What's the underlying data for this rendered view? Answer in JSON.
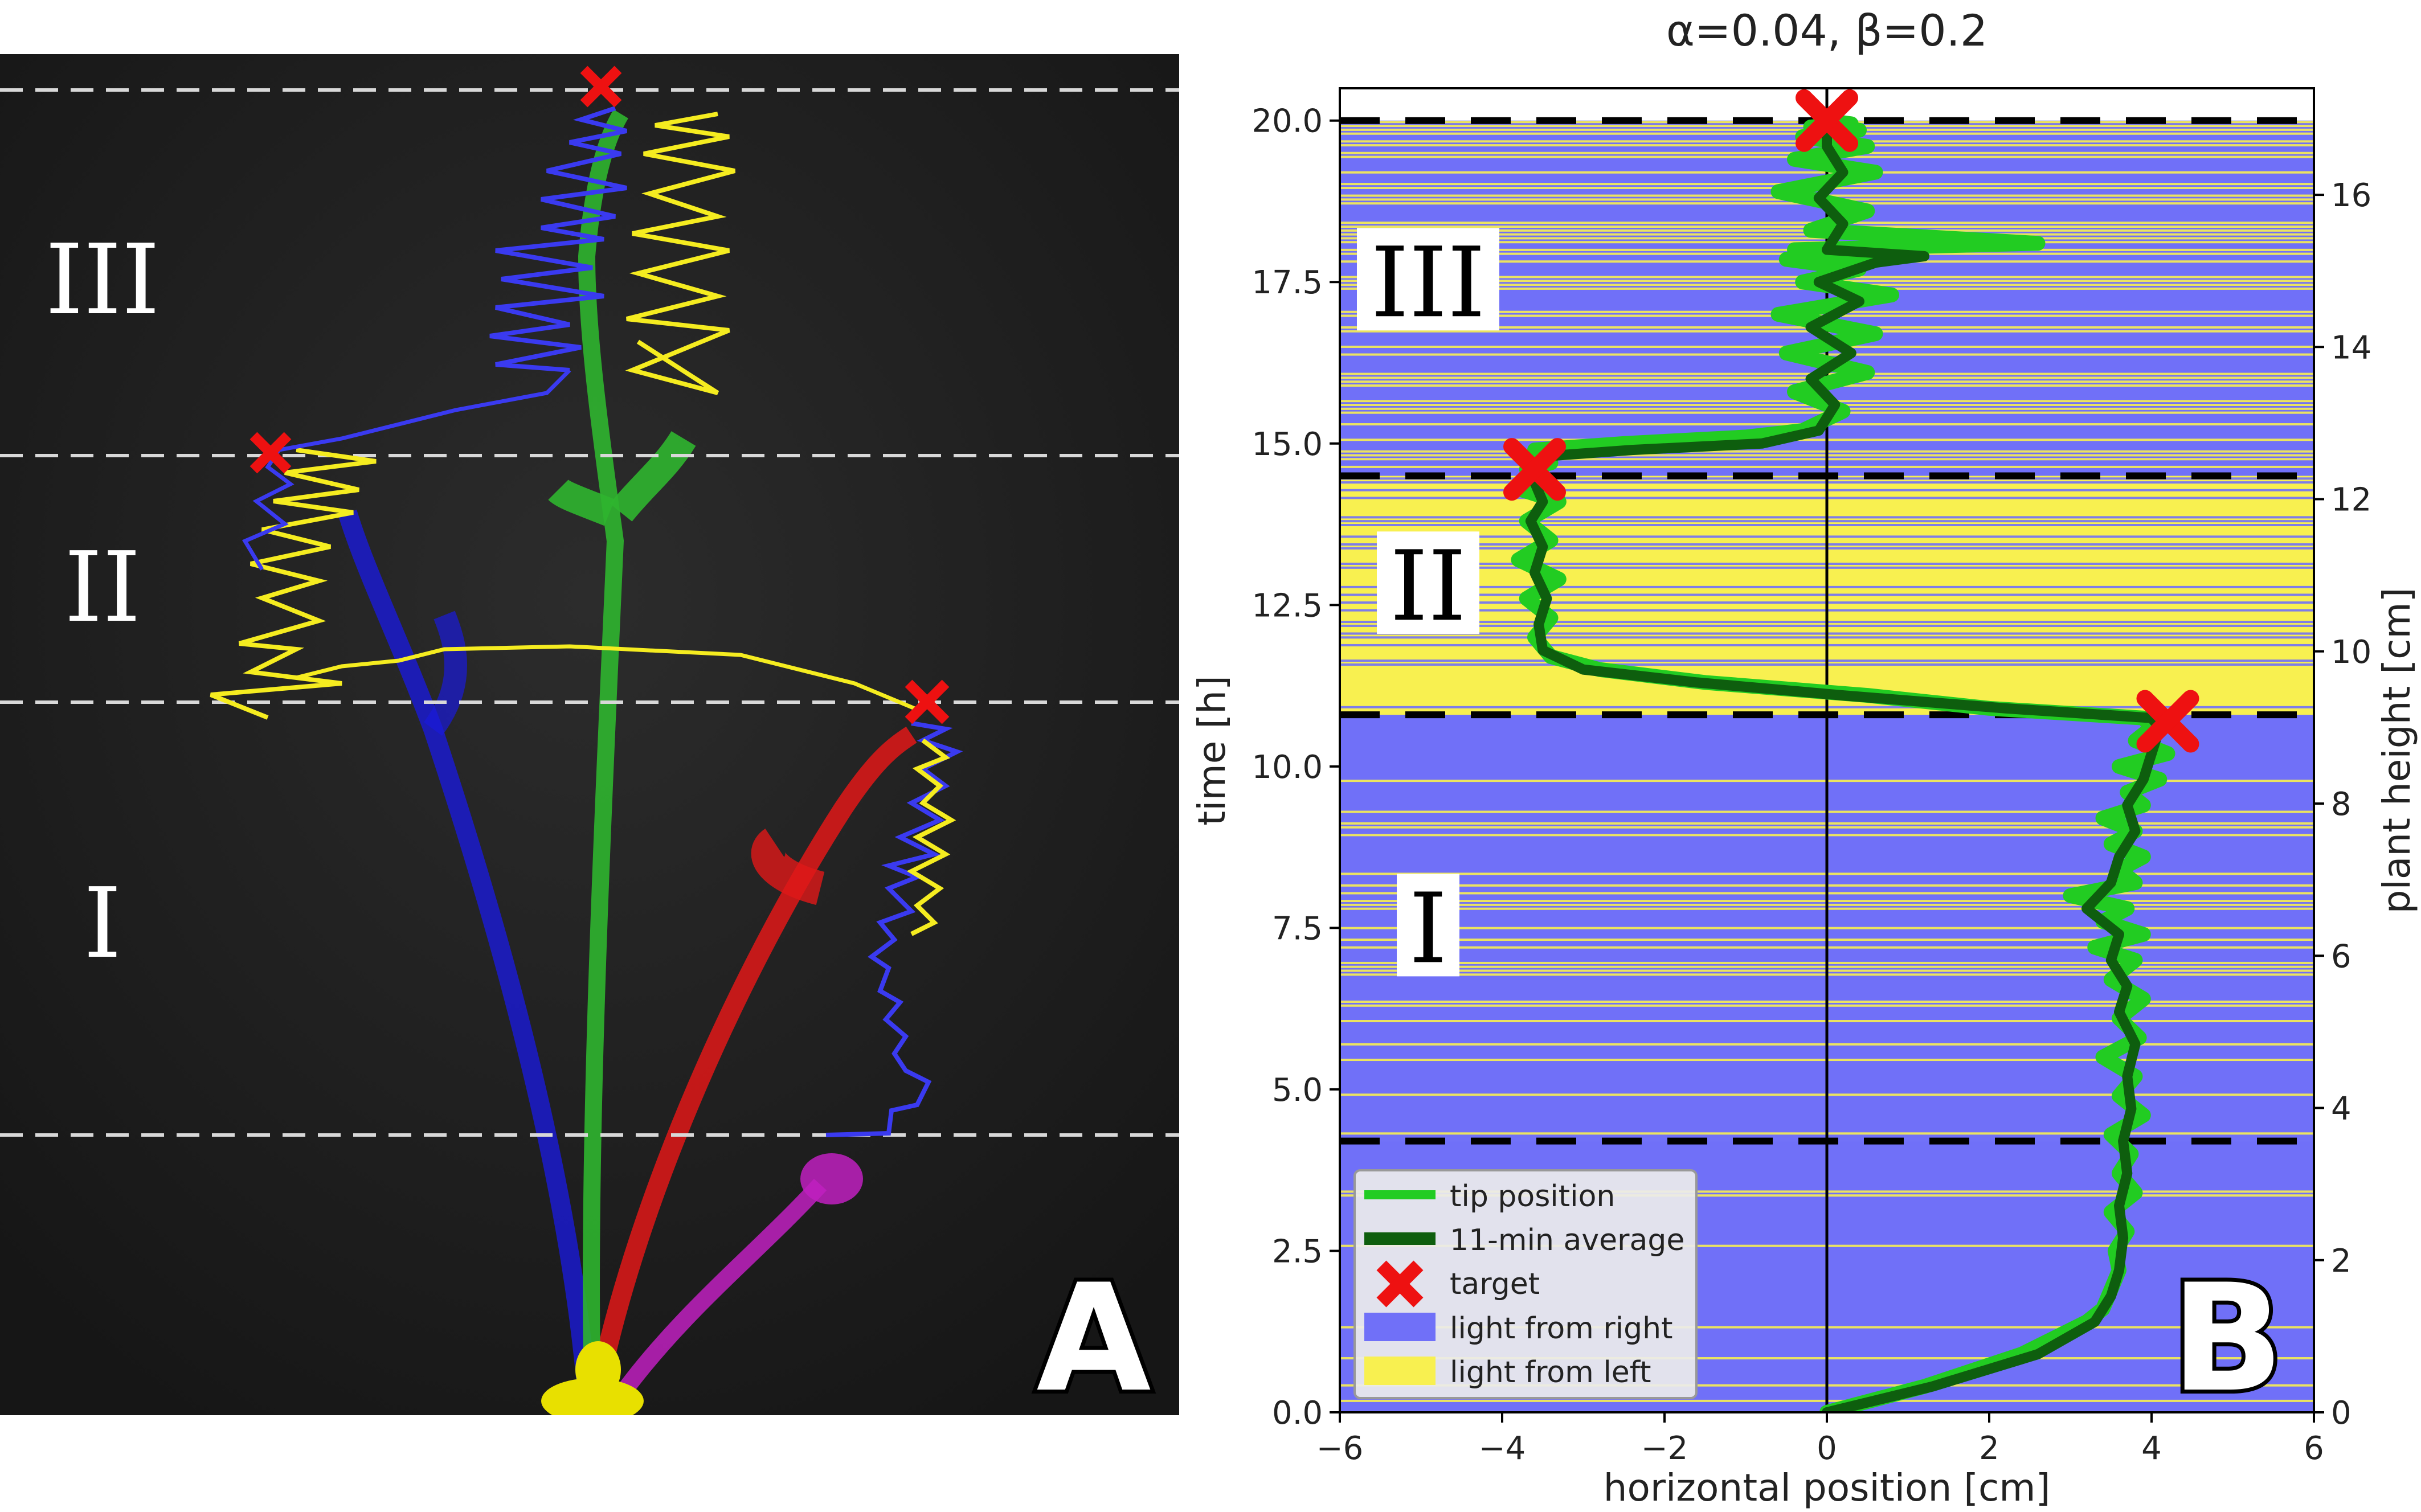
{
  "panels": {
    "a_letter": "A",
    "b_letter": "B"
  },
  "photo": {
    "region_labels": [
      "III",
      "II",
      "I"
    ],
    "trace_colors": {
      "blue": "#3a3af0",
      "yellow": "#f5ec20"
    },
    "plant_colors": {
      "green": "#2fb52f",
      "blue": "#1a1ad8",
      "red": "#e01818",
      "magenta": "#c020c0",
      "yellow": "#e8e000"
    },
    "target_color": "#ee1111",
    "background": "#202020"
  },
  "chart_data": {
    "type": "line",
    "title": "α=0.04, β=0.2",
    "xlabel": "horizontal position [cm]",
    "ylabel": "time [h]",
    "y2label": "plant height [cm]",
    "xlim": [
      -6,
      6
    ],
    "ylim": [
      0,
      20.5
    ],
    "y2lim": [
      0,
      17.4
    ],
    "xticks": [
      -6,
      -4,
      -2,
      0,
      2,
      4,
      6
    ],
    "xtick_labels": [
      "−6",
      "−4",
      "−2",
      "0",
      "2",
      "4",
      "6"
    ],
    "yticks": [
      0.0,
      2.5,
      5.0,
      7.5,
      10.0,
      12.5,
      15.0,
      17.5,
      20.0
    ],
    "ytick_labels": [
      "0.0",
      "2.5",
      "5.0",
      "7.5",
      "10.0",
      "12.5",
      "15.0",
      "17.5",
      "20.0"
    ],
    "y2ticks": [
      0,
      2,
      4,
      6,
      8,
      10,
      12,
      14,
      16
    ],
    "y2tick_labels": [
      "0",
      "2",
      "4",
      "6",
      "8",
      "10",
      "12",
      "14",
      "16"
    ],
    "phase_boundaries_h": [
      4.2,
      10.8,
      14.5,
      20.0
    ],
    "region_labels": [
      {
        "label": "III",
        "x": -6.0,
        "y": 17.5
      },
      {
        "label": "II",
        "x": -6.0,
        "y": 12.8
      },
      {
        "label": "I",
        "x": -6.0,
        "y": 7.5
      }
    ],
    "targets": [
      {
        "x": 4.2,
        "y": 10.7
      },
      {
        "x": -3.6,
        "y": 14.6
      },
      {
        "x": 0.0,
        "y": 20.0
      }
    ],
    "background_colors": {
      "light from right": "#7070f8",
      "light from left": "#f8f050"
    },
    "series": [
      {
        "name": "tip position",
        "color": "#22cc22",
        "x": [
          0.0,
          1.2,
          2.4,
          3.2,
          3.4,
          3.5,
          3.6,
          3.55,
          3.7,
          3.5,
          3.8,
          3.6,
          3.75,
          3.5,
          3.9,
          3.6,
          3.8,
          3.4,
          3.85,
          3.6,
          3.9,
          3.5,
          3.8,
          3.3,
          3.9,
          3.4,
          3.7,
          3.0,
          3.8,
          3.6,
          3.9,
          3.5,
          3.8,
          3.4,
          3.9,
          3.7,
          4.1,
          3.6,
          4.2,
          3.8,
          4.0,
          3.9,
          2.0,
          0.5,
          -1.5,
          -2.8,
          -3.4,
          -3.6,
          -3.4,
          -3.7,
          -3.3,
          -3.8,
          -3.4,
          -3.7,
          -3.3,
          -3.8,
          -3.5,
          -3.7,
          -3.4,
          -3.6,
          -3.6,
          -2.5,
          -1.0,
          -0.3,
          0.2,
          -0.4,
          0.5,
          -0.5,
          0.6,
          -0.6,
          0.8,
          -0.3,
          0.4,
          -0.5,
          0.7,
          -0.4,
          2.6,
          -0.2,
          0.5,
          -0.6,
          0.6,
          -0.4,
          0.5,
          -0.3,
          0.4,
          -0.2,
          0.3,
          0.0
        ],
        "y": [
          0.0,
          0.4,
          0.9,
          1.4,
          1.6,
          1.9,
          2.2,
          2.5,
          2.8,
          3.1,
          3.4,
          3.7,
          4.0,
          4.3,
          4.6,
          4.9,
          5.2,
          5.5,
          5.8,
          6.1,
          6.4,
          6.7,
          7.0,
          7.2,
          7.4,
          7.6,
          7.8,
          8.0,
          8.2,
          8.4,
          8.6,
          8.8,
          9.0,
          9.2,
          9.4,
          9.6,
          9.8,
          10.0,
          10.2,
          10.4,
          10.6,
          10.75,
          10.9,
          11.1,
          11.3,
          11.5,
          11.7,
          12.0,
          12.3,
          12.6,
          12.9,
          13.2,
          13.5,
          13.8,
          14.1,
          14.3,
          14.5,
          14.6,
          14.7,
          14.8,
          14.9,
          15.0,
          15.1,
          15.2,
          15.5,
          15.8,
          16.1,
          16.4,
          16.7,
          17.0,
          17.3,
          17.5,
          17.7,
          17.85,
          17.9,
          18.0,
          18.1,
          18.3,
          18.6,
          18.9,
          19.2,
          19.4,
          19.6,
          19.75,
          19.85,
          19.9,
          19.95,
          20.0
        ]
      },
      {
        "name": "11-min average",
        "color": "#0e5e0e",
        "x": [
          0.0,
          1.3,
          2.6,
          3.3,
          3.5,
          3.6,
          3.65,
          3.6,
          3.7,
          3.65,
          3.75,
          3.7,
          3.8,
          3.6,
          3.7,
          3.5,
          3.6,
          3.2,
          3.5,
          3.6,
          3.8,
          3.7,
          3.9,
          4.0,
          4.1,
          4.0,
          2.2,
          0.2,
          -1.6,
          -3.0,
          -3.5,
          -3.55,
          -3.45,
          -3.6,
          -3.5,
          -3.65,
          -3.5,
          -3.6,
          -3.55,
          -3.5,
          -2.4,
          -0.8,
          -0.1,
          0.1,
          -0.2,
          0.3,
          -0.2,
          0.4,
          -0.1,
          0.6,
          1.2,
          0.0,
          0.2,
          -0.1,
          0.2,
          0.0,
          0.0
        ],
        "y": [
          0.0,
          0.4,
          0.9,
          1.4,
          1.8,
          2.2,
          2.7,
          3.2,
          3.7,
          4.2,
          4.7,
          5.2,
          5.7,
          6.2,
          6.6,
          7.0,
          7.4,
          7.8,
          8.2,
          8.6,
          9.0,
          9.4,
          9.8,
          10.2,
          10.6,
          10.75,
          10.9,
          11.1,
          11.3,
          11.5,
          11.8,
          12.2,
          12.6,
          13.0,
          13.4,
          13.8,
          14.1,
          14.4,
          14.6,
          14.8,
          14.9,
          15.0,
          15.2,
          15.6,
          16.0,
          16.4,
          16.8,
          17.2,
          17.5,
          17.8,
          17.9,
          18.0,
          18.4,
          18.8,
          19.2,
          19.6,
          20.0
        ]
      }
    ],
    "legend": {
      "placement": "bottom-left",
      "entries": [
        "tip position",
        "11-min average",
        "target",
        "light from right",
        "light from left"
      ]
    }
  }
}
